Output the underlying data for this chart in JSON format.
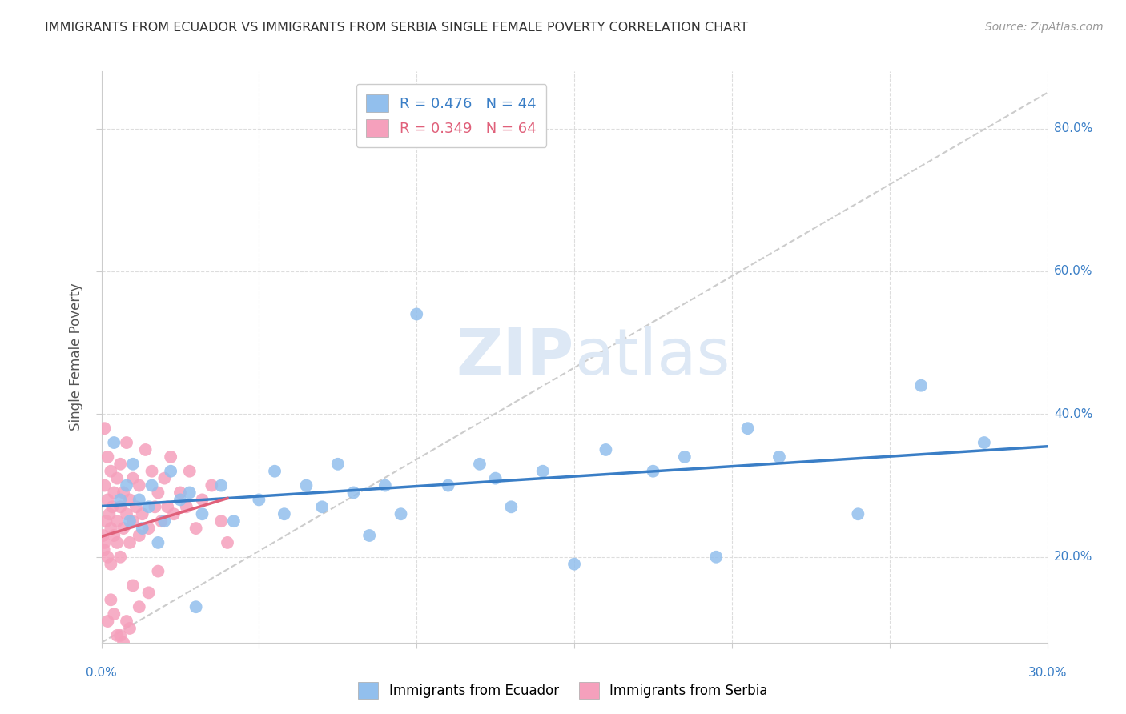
{
  "title": "IMMIGRANTS FROM ECUADOR VS IMMIGRANTS FROM SERBIA SINGLE FEMALE POVERTY CORRELATION CHART",
  "source": "Source: ZipAtlas.com",
  "ylabel": "Single Female Poverty",
  "legend1_label": "R = 0.476   N = 44",
  "legend2_label": "R = 0.349   N = 64",
  "watermark_zip": "ZIP",
  "watermark_atlas": "atlas",
  "blue_color": "#92BFED",
  "pink_color": "#F5A0BC",
  "blue_line_color": "#3A7EC6",
  "pink_line_color": "#E0607A",
  "xlim": [
    0.0,
    0.3
  ],
  "ylim": [
    0.08,
    0.88
  ],
  "ecuador_x": [
    0.004,
    0.006,
    0.008,
    0.009,
    0.01,
    0.012,
    0.013,
    0.015,
    0.016,
    0.018,
    0.02,
    0.022,
    0.025,
    0.028,
    0.03,
    0.032,
    0.038,
    0.042,
    0.05,
    0.055,
    0.058,
    0.065,
    0.07,
    0.075,
    0.08,
    0.085,
    0.09,
    0.095,
    0.1,
    0.11,
    0.12,
    0.125,
    0.13,
    0.14,
    0.15,
    0.16,
    0.175,
    0.185,
    0.195,
    0.205,
    0.215,
    0.24,
    0.26,
    0.28
  ],
  "ecuador_y": [
    0.36,
    0.28,
    0.3,
    0.25,
    0.33,
    0.28,
    0.24,
    0.27,
    0.3,
    0.22,
    0.25,
    0.32,
    0.28,
    0.29,
    0.13,
    0.26,
    0.3,
    0.25,
    0.28,
    0.32,
    0.26,
    0.3,
    0.27,
    0.33,
    0.29,
    0.23,
    0.3,
    0.26,
    0.54,
    0.3,
    0.33,
    0.31,
    0.27,
    0.32,
    0.19,
    0.35,
    0.32,
    0.34,
    0.2,
    0.38,
    0.34,
    0.26,
    0.44,
    0.36
  ],
  "serbia_x": [
    0.0005,
    0.0008,
    0.001,
    0.001,
    0.0015,
    0.002,
    0.002,
    0.002,
    0.0025,
    0.003,
    0.003,
    0.003,
    0.0035,
    0.004,
    0.004,
    0.005,
    0.005,
    0.005,
    0.006,
    0.006,
    0.006,
    0.007,
    0.007,
    0.008,
    0.008,
    0.009,
    0.009,
    0.01,
    0.01,
    0.011,
    0.012,
    0.012,
    0.013,
    0.014,
    0.015,
    0.016,
    0.017,
    0.018,
    0.019,
    0.02,
    0.021,
    0.022,
    0.023,
    0.025,
    0.027,
    0.028,
    0.03,
    0.032,
    0.035,
    0.038,
    0.04,
    0.012,
    0.015,
    0.018,
    0.008,
    0.01,
    0.006,
    0.004,
    0.007,
    0.009,
    0.003,
    0.005,
    0.002,
    0.001
  ],
  "serbia_y": [
    0.23,
    0.21,
    0.3,
    0.22,
    0.25,
    0.28,
    0.34,
    0.2,
    0.26,
    0.24,
    0.19,
    0.32,
    0.27,
    0.29,
    0.23,
    0.25,
    0.31,
    0.22,
    0.27,
    0.33,
    0.2,
    0.24,
    0.29,
    0.26,
    0.36,
    0.22,
    0.28,
    0.25,
    0.31,
    0.27,
    0.3,
    0.23,
    0.26,
    0.35,
    0.24,
    0.32,
    0.27,
    0.29,
    0.25,
    0.31,
    0.27,
    0.34,
    0.26,
    0.29,
    0.27,
    0.32,
    0.24,
    0.28,
    0.3,
    0.25,
    0.22,
    0.13,
    0.15,
    0.18,
    0.11,
    0.16,
    0.09,
    0.12,
    0.08,
    0.1,
    0.14,
    0.09,
    0.11,
    0.38
  ],
  "ref_line_x": [
    0.0,
    0.3
  ],
  "ref_line_y": [
    0.08,
    0.85
  ]
}
